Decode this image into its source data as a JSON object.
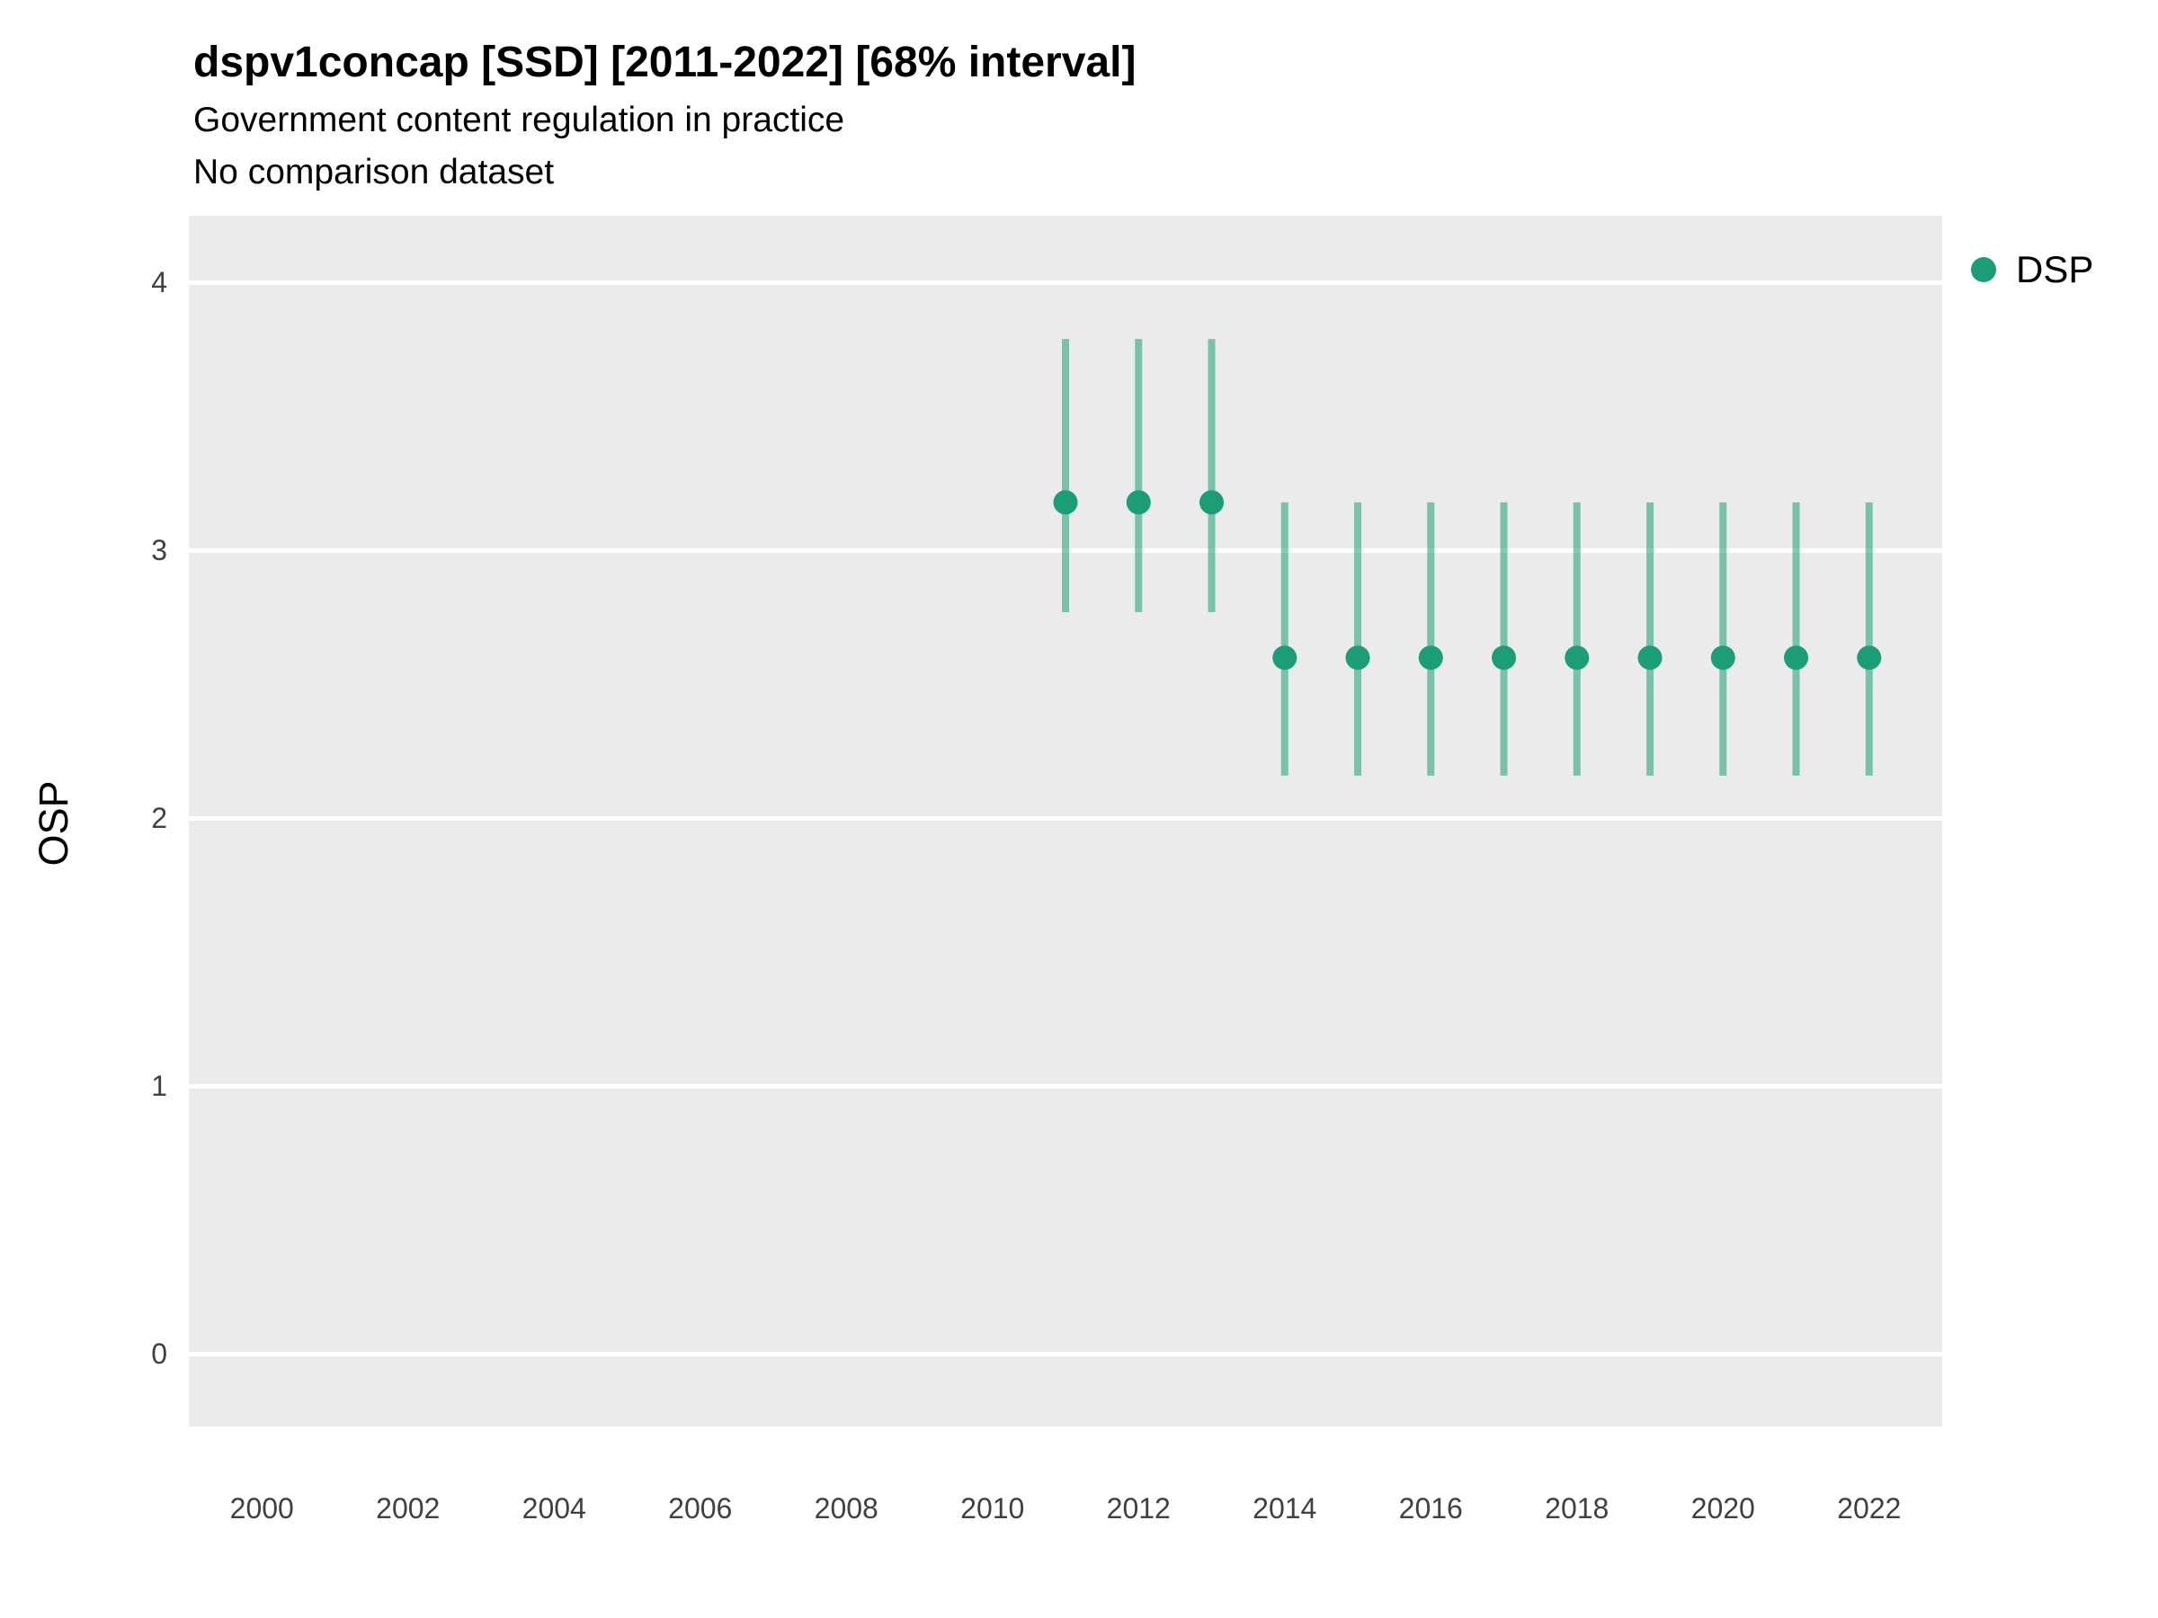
{
  "header": {
    "title": "dspv1concap [SSD] [2011-2022] [68% interval]",
    "subtitle": "Government content regulation in practice",
    "subtitle2": "No comparison dataset"
  },
  "legend": {
    "label": "DSP",
    "color": "#1b9e77"
  },
  "chart_data": {
    "type": "scatter",
    "title": "dspv1concap [SSD] [2011-2022] [68% interval]",
    "subtitle": "Government content regulation in practice",
    "note": "No comparison dataset",
    "interval": "68%",
    "xlabel": "",
    "ylabel": "OSP",
    "x_ticks": [
      2000,
      2002,
      2004,
      2006,
      2008,
      2010,
      2012,
      2014,
      2016,
      2018,
      2020,
      2022
    ],
    "y_ticks": [
      0,
      1,
      2,
      3,
      4
    ],
    "xlim": [
      1999,
      2023
    ],
    "ylim": [
      -0.27,
      4.25
    ],
    "grid": "horizontal-major-only",
    "legend_position": "right",
    "panel_bg": "#EBEBEB",
    "grid_color": "#FFFFFF",
    "point_color": "#1b9e77",
    "interval_color": "rgba(27, 158, 119, 0.55)",
    "series": [
      {
        "name": "DSP",
        "points": [
          {
            "year": 2011,
            "value": 3.18,
            "low": 2.77,
            "high": 3.79
          },
          {
            "year": 2012,
            "value": 3.18,
            "low": 2.77,
            "high": 3.79
          },
          {
            "year": 2013,
            "value": 3.18,
            "low": 2.77,
            "high": 3.79
          },
          {
            "year": 2014,
            "value": 2.6,
            "low": 2.16,
            "high": 3.18
          },
          {
            "year": 2015,
            "value": 2.6,
            "low": 2.16,
            "high": 3.18
          },
          {
            "year": 2016,
            "value": 2.6,
            "low": 2.16,
            "high": 3.18
          },
          {
            "year": 2017,
            "value": 2.6,
            "low": 2.16,
            "high": 3.18
          },
          {
            "year": 2018,
            "value": 2.6,
            "low": 2.16,
            "high": 3.18
          },
          {
            "year": 2019,
            "value": 2.6,
            "low": 2.16,
            "high": 3.18
          },
          {
            "year": 2020,
            "value": 2.6,
            "low": 2.16,
            "high": 3.18
          },
          {
            "year": 2021,
            "value": 2.6,
            "low": 2.16,
            "high": 3.18
          },
          {
            "year": 2022,
            "value": 2.6,
            "low": 2.16,
            "high": 3.18
          }
        ]
      }
    ]
  }
}
